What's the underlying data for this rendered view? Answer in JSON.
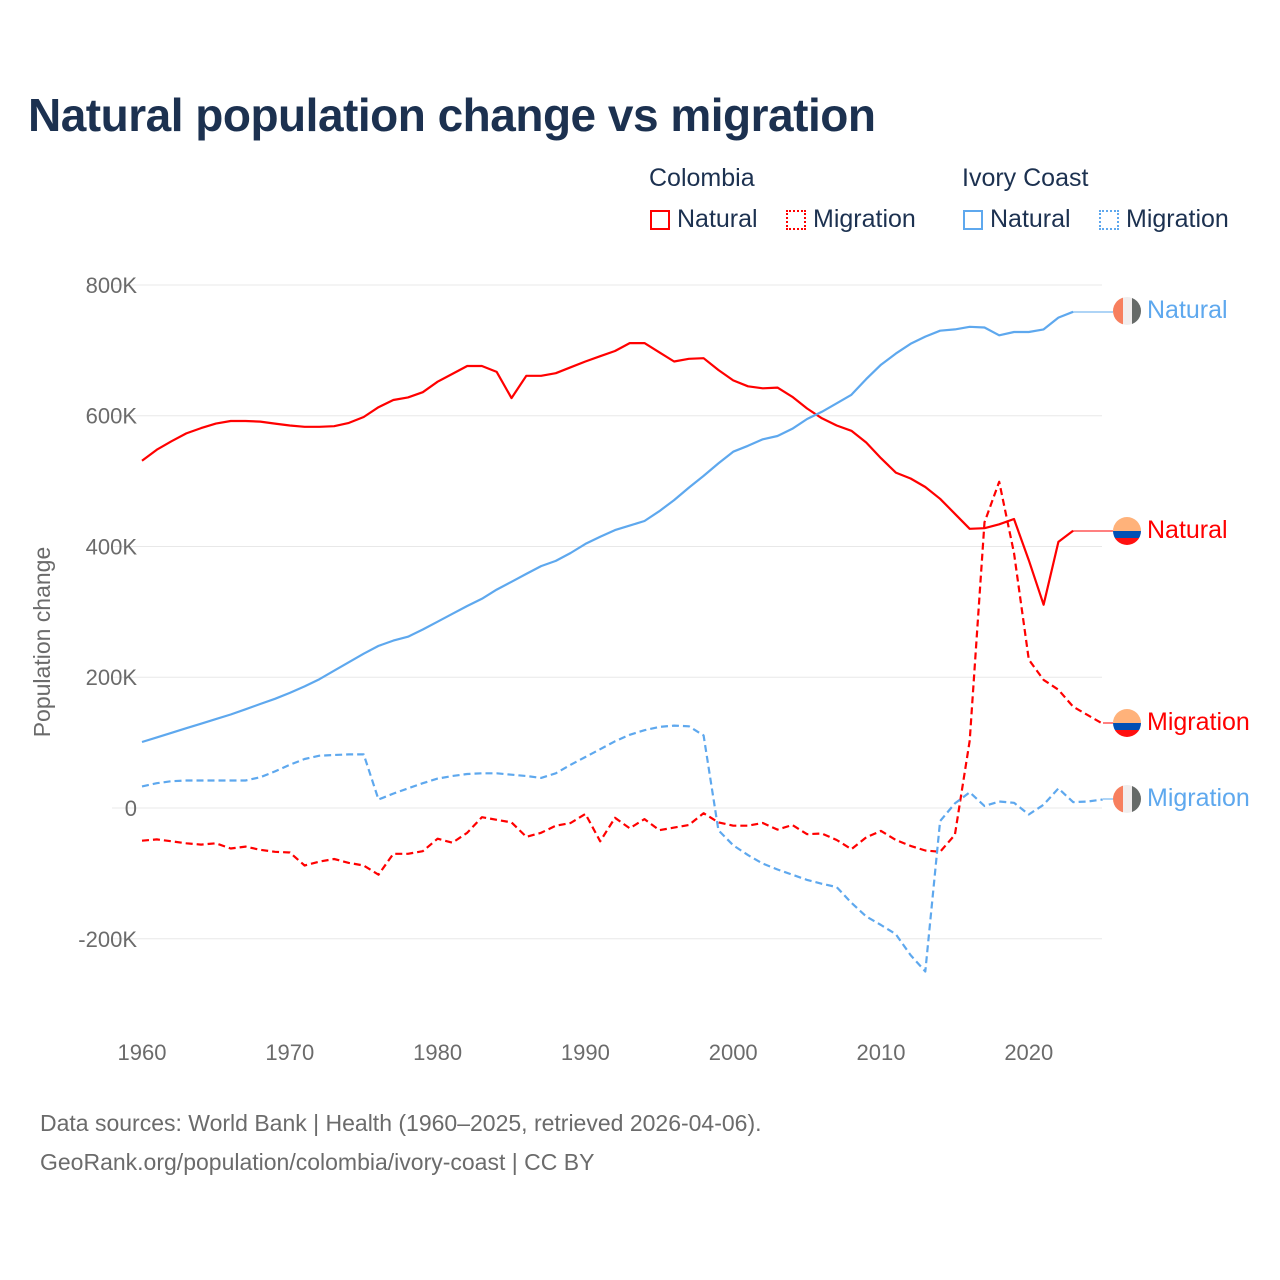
{
  "chart_data": {
    "type": "line",
    "title": "Natural population change vs migration",
    "xlabel": "",
    "ylabel": "Population change",
    "xlim": [
      1960,
      2025
    ],
    "ylim": [
      -300000,
      800000
    ],
    "grid": true,
    "legend_placement": "top-right",
    "x_ticks": [
      "1960",
      "1970",
      "1980",
      "1990",
      "2000",
      "2010",
      "2020"
    ],
    "x_tick_values": [
      1960,
      1970,
      1980,
      1990,
      2000,
      2010,
      2020
    ],
    "y_ticks": [
      "-200K",
      "0",
      "200K",
      "400K",
      "600K",
      "800K"
    ],
    "y_tick_values": [
      -200000,
      0,
      200000,
      400000,
      600000,
      800000
    ],
    "legend": {
      "groups": [
        {
          "name": "Colombia",
          "items": [
            "Natural",
            "Migration"
          ]
        },
        {
          "name": "Ivory Coast",
          "items": [
            "Natural",
            "Migration"
          ]
        }
      ]
    },
    "series": [
      {
        "name": "Colombia Natural",
        "country": "Colombia",
        "kind": "Natural",
        "end_label": "Natural",
        "color": "#ff0000",
        "dash": "solid",
        "start_year": 1960,
        "values_k": [
          531,
          548,
          561,
          573,
          581,
          588,
          592,
          592,
          591,
          588,
          585,
          583,
          583,
          584,
          589,
          598,
          613,
          624,
          628,
          636,
          652,
          664,
          676,
          676,
          667,
          627,
          661,
          661,
          665,
          674,
          683,
          691,
          699,
          711,
          711,
          697,
          683,
          687,
          688,
          670,
          654,
          645,
          642,
          643,
          629,
          611,
          596,
          585,
          577,
          559,
          535,
          513,
          504,
          491,
          473,
          450,
          427,
          428,
          434,
          442,
          379,
          311,
          407,
          424
        ]
      },
      {
        "name": "Colombia Migration",
        "country": "Colombia",
        "kind": "Migration",
        "end_label": "Migration",
        "color": "#ff0000",
        "dash": "dashed",
        "start_year": 1960,
        "values_k": [
          -50,
          -48,
          -51,
          -54,
          -56,
          -54,
          -62,
          -59,
          -64,
          -67,
          -68,
          -88,
          -82,
          -78,
          -84,
          -88,
          -102,
          -70,
          -70,
          -66,
          -47,
          -53,
          -38,
          -14,
          -18,
          -22,
          -44,
          -38,
          -27,
          -23,
          -9,
          -51,
          -15,
          -31,
          -17,
          -34,
          -30,
          -26,
          -8,
          -22,
          -27,
          -27,
          -23,
          -33,
          -26,
          -40,
          -39,
          -49,
          -63,
          -45,
          -35,
          -49,
          -58,
          -65,
          -67,
          -41,
          103,
          437,
          499,
          390,
          227,
          196,
          181,
          155,
          142,
          129
        ]
      },
      {
        "name": "Ivory Coast Natural",
        "country": "Ivory Coast",
        "kind": "Natural",
        "end_label": "Natural",
        "color": "#5ea8ee",
        "dash": "solid",
        "start_year": 1960,
        "values_k": [
          101,
          108,
          115,
          122,
          129,
          136,
          143,
          151,
          159,
          167,
          176,
          186,
          197,
          210,
          223,
          236,
          248,
          256,
          262,
          273,
          285,
          297,
          309,
          320,
          334,
          346,
          358,
          370,
          378,
          390,
          404,
          415,
          425,
          432,
          439,
          454,
          471,
          490,
          508,
          527,
          545,
          554,
          564,
          569,
          580,
          595,
          606,
          619,
          632,
          656,
          678,
          695,
          710,
          721,
          730,
          732,
          736,
          735,
          723,
          728,
          728,
          732,
          750,
          759
        ]
      },
      {
        "name": "Ivory Coast Migration",
        "country": "Ivory Coast",
        "kind": "Migration",
        "end_label": "Migration",
        "color": "#5ea8ee",
        "dash": "dashed",
        "start_year": 1960,
        "values_k": [
          33,
          38,
          41,
          42,
          42,
          42,
          42,
          42,
          47,
          56,
          66,
          75,
          80,
          81,
          82,
          82,
          13,
          22,
          30,
          38,
          45,
          49,
          52,
          53,
          53,
          51,
          49,
          46,
          53,
          66,
          78,
          90,
          102,
          112,
          119,
          124,
          126,
          125,
          111,
          -34,
          -57,
          -72,
          -85,
          -94,
          -102,
          -110,
          -116,
          -121,
          -145,
          -166,
          -179,
          -193,
          -225,
          -250,
          -20,
          7,
          24,
          3,
          10,
          8,
          -10,
          5,
          30,
          9,
          10,
          13
        ]
      }
    ]
  },
  "legend": {
    "colombia": {
      "title": "Colombia",
      "natural": "Natural",
      "migration": "Migration"
    },
    "ivory_coast": {
      "title": "Ivory Coast",
      "natural": "Natural",
      "migration": "Migration"
    }
  },
  "end_labels": {
    "ivory_natural": "Natural",
    "colombia_natural": "Natural",
    "colombia_migration": "Migration",
    "ivory_migration": "Migration"
  },
  "colors": {
    "colombia": "#ff0000",
    "ivory_coast": "#5ea8ee",
    "title": "#1c3150"
  },
  "footer": {
    "line1": "Data sources: World Bank | Health (1960–2025, retrieved 2026-04-06).",
    "line2": "GeoRank.org/population/colombia/ivory-coast | CC BY"
  }
}
